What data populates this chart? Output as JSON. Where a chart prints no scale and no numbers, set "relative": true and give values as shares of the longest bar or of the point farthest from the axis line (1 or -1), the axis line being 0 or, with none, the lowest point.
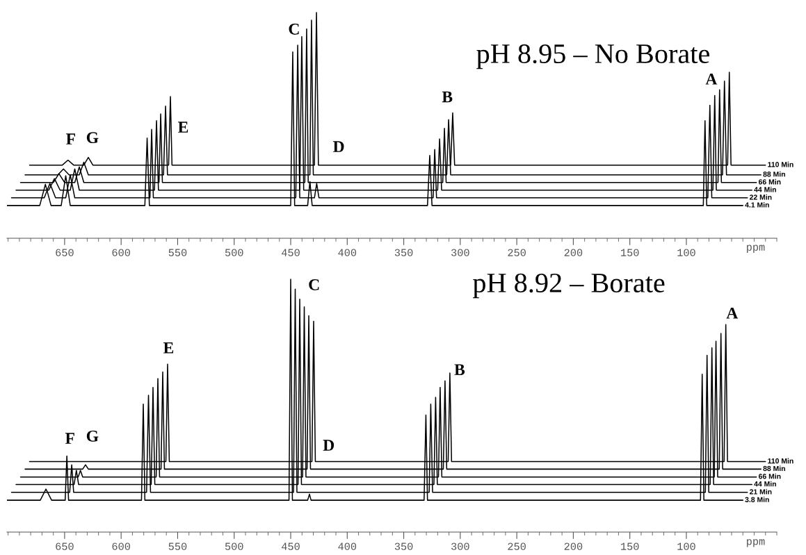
{
  "chart_data": [
    {
      "type": "line",
      "relative": true,
      "title": "pH 8.95 – No Borate",
      "xlabel": "ppm",
      "xlim": [
        701,
        20
      ],
      "xticks": [
        650,
        600,
        550,
        500,
        450,
        400,
        350,
        300,
        250,
        200,
        150,
        100
      ],
      "tick_labels": "x",
      "annotations": [
        "F",
        "G",
        "E",
        "C",
        "D",
        "B",
        "A"
      ],
      "series": [
        {
          "name": "4.1 Min",
          "color": "#000000",
          "x": [
            701,
            672,
            667,
            662,
            653,
            649,
            645,
            579,
            577,
            575,
            450,
            448.2,
            446.5,
            435,
            433,
            431,
            329,
            327,
            325,
            85,
            83.5,
            82,
            50
          ],
          "values": [
            0.145,
            0.145,
            0.239,
            0.145,
            0.145,
            0.277,
            0.145,
            0.145,
            0.444,
            0.145,
            0.145,
            0.825,
            0.145,
            0.145,
            0.251,
            0.145,
            0.145,
            0.367,
            0.145,
            0.145,
            0.521,
            0.145,
            0.145
          ]
        },
        {
          "name": "22 Min",
          "color": "#000000",
          "x": [
            697,
            668,
            663,
            658,
            649,
            645,
            641,
            574.5,
            573,
            571.5,
            445.5,
            443.8,
            442,
            429,
            427,
            425,
            324,
            322.6,
            321,
            81,
            79.2,
            77.5,
            46
          ],
          "values": [
            0.179,
            0.179,
            0.243,
            0.179,
            0.179,
            0.281,
            0.179,
            0.179,
            0.482,
            0.179,
            0.179,
            0.855,
            0.179,
            0.179,
            0.243,
            0.179,
            0.179,
            0.393,
            0.179,
            0.179,
            0.589,
            0.179,
            0.179
          ]
        },
        {
          "name": "44 Min",
          "color": "#000000",
          "x": [
            693,
            664,
            659,
            654,
            645,
            641,
            637,
            570.5,
            568.7,
            567,
            442,
            440.2,
            438.5,
            320,
            318.3,
            316.5,
            76.5,
            74.9,
            73.5,
            42
          ],
          "values": [
            0.213,
            0.213,
            0.264,
            0.213,
            0.213,
            0.307,
            0.213,
            0.213,
            0.521,
            0.213,
            0.213,
            0.893,
            0.213,
            0.213,
            0.44,
            0.213,
            0.213,
            0.632,
            0.213,
            0.213
          ]
        },
        {
          "name": "66 Min",
          "color": "#000000",
          "x": [
            689,
            660,
            655,
            650,
            641,
            637,
            633,
            566.5,
            565,
            563.5,
            437.5,
            435.9,
            434.5,
            315.5,
            314,
            312.5,
            72,
            70.6,
            69,
            38
          ],
          "values": [
            0.247,
            0.247,
            0.286,
            0.247,
            0.247,
            0.316,
            0.247,
            0.247,
            0.551,
            0.247,
            0.247,
            0.927,
            0.247,
            0.247,
            0.487,
            0.247,
            0.247,
            0.658,
            0.247,
            0.247
          ]
        },
        {
          "name": "88 Min",
          "color": "#000000",
          "x": [
            685,
            656,
            651,
            646,
            637,
            633,
            629,
            562.5,
            560.7,
            559,
            433,
            431.6,
            430,
            312,
            310.3,
            308.5,
            68,
            66.3,
            64.5,
            34
          ],
          "values": [
            0.281,
            0.281,
            0.307,
            0.281,
            0.281,
            0.337,
            0.281,
            0.281,
            0.585,
            0.281,
            0.281,
            0.966,
            0.281,
            0.281,
            0.525,
            0.281,
            0.281,
            0.696,
            0.281,
            0.281
          ]
        },
        {
          "name": "110 Min",
          "color": "#000000",
          "x": [
            681,
            652,
            647,
            642,
            633,
            629,
            625,
            558,
            556.4,
            555,
            429,
            427.2,
            425.5,
            308.5,
            306.7,
            305,
            63.5,
            62,
            60.5,
            30
          ],
          "values": [
            0.324,
            0.324,
            0.346,
            0.324,
            0.324,
            0.358,
            0.324,
            0.324,
            0.628,
            0.324,
            0.324,
            1.0,
            0.324,
            0.324,
            0.555,
            0.324,
            0.324,
            0.735,
            0.324,
            0.324
          ]
        }
      ]
    },
    {
      "type": "line",
      "relative": true,
      "title": "pH 8.92 – Borate",
      "xlabel": "ppm",
      "xlim": [
        701,
        20
      ],
      "xticks": [
        650,
        600,
        550,
        500,
        450,
        400,
        350,
        300,
        250,
        200,
        150,
        100
      ],
      "tick_labels": "x",
      "annotations": [
        "F",
        "G",
        "E",
        "C",
        "D",
        "B",
        "A"
      ],
      "series": [
        {
          "name": "3.8 Min",
          "color": "#000000",
          "x": [
            701,
            671.5,
            666.5,
            661.5,
            649.5,
            648,
            646.5,
            582,
            580.4,
            579,
            451.5,
            450,
            448.5,
            435,
            433.4,
            432,
            332,
            330.4,
            329,
            87.5,
            86,
            84.5,
            50
          ],
          "values": [
            0.126,
            0.126,
            0.17,
            0.126,
            0.126,
            0.301,
            0.126,
            0.126,
            0.506,
            0.126,
            0.126,
            1.0,
            0.126,
            0.126,
            0.15,
            0.126,
            0.126,
            0.463,
            0.126,
            0.126,
            0.624,
            0.126,
            0.126
          ]
        },
        {
          "name": "21 Min",
          "color": "#000000",
          "x": [
            697,
            645.5,
            643.7,
            642,
            577.5,
            575.8,
            574,
            447.5,
            446,
            444.5,
            327.5,
            326.1,
            324.5,
            83.2,
            81.7,
            80.2,
            46
          ],
          "values": [
            0.157,
            0.157,
            0.266,
            0.157,
            0.157,
            0.541,
            0.157,
            0.157,
            0.961,
            0.157,
            0.157,
            0.506,
            0.157,
            0.157,
            0.699,
            0.157,
            0.157
          ]
        },
        {
          "name": "44 Min",
          "color": "#000000",
          "x": [
            693,
            641.6,
            639.6,
            637.6,
            573.4,
            571.8,
            570.2,
            443.5,
            442,
            440.5,
            323.3,
            321.8,
            320.3,
            78.9,
            77.4,
            75.9,
            42
          ],
          "values": [
            0.188,
            0.188,
            0.244,
            0.188,
            0.188,
            0.572,
            0.188,
            0.188,
            0.921,
            0.188,
            0.188,
            0.533,
            0.188,
            0.188,
            0.729,
            0.188,
            0.188
          ]
        },
        {
          "name": "66 Min",
          "color": "#000000",
          "x": [
            689,
            638,
            636,
            634,
            569,
            567.5,
            566,
            439.5,
            438,
            436.5,
            319.3,
            317.8,
            316.3,
            75.3,
            73.8,
            72.3,
            38
          ],
          "values": [
            0.218,
            0.218,
            0.244,
            0.218,
            0.218,
            0.607,
            0.218,
            0.218,
            0.891,
            0.218,
            0.218,
            0.572,
            0.218,
            0.218,
            0.755,
            0.218,
            0.218
          ]
        },
        {
          "name": "88 Min",
          "color": "#000000",
          "x": [
            685,
            634,
            631.5,
            629,
            564.7,
            563.2,
            561.7,
            435.5,
            434,
            432.5,
            315,
            313.5,
            312,
            70.9,
            69.4,
            67.9,
            34
          ],
          "values": [
            0.249,
            0.249,
            0.266,
            0.249,
            0.249,
            0.633,
            0.249,
            0.249,
            0.856,
            0.249,
            0.249,
            0.598,
            0.249,
            0.249,
            0.786,
            0.249,
            0.249
          ]
        },
        {
          "name": "110 Min",
          "color": "#000000",
          "x": [
            681,
            560.4,
            558.9,
            557.4,
            431.2,
            429.7,
            428.2,
            310.7,
            309.2,
            307.7,
            66.6,
            65.1,
            63.6,
            30
          ],
          "values": [
            0.279,
            0.279,
            0.664,
            0.279,
            0.279,
            0.834,
            0.279,
            0.279,
            0.629,
            0.279,
            0.279,
            0.821,
            0.279,
            0.279
          ]
        }
      ]
    }
  ]
}
